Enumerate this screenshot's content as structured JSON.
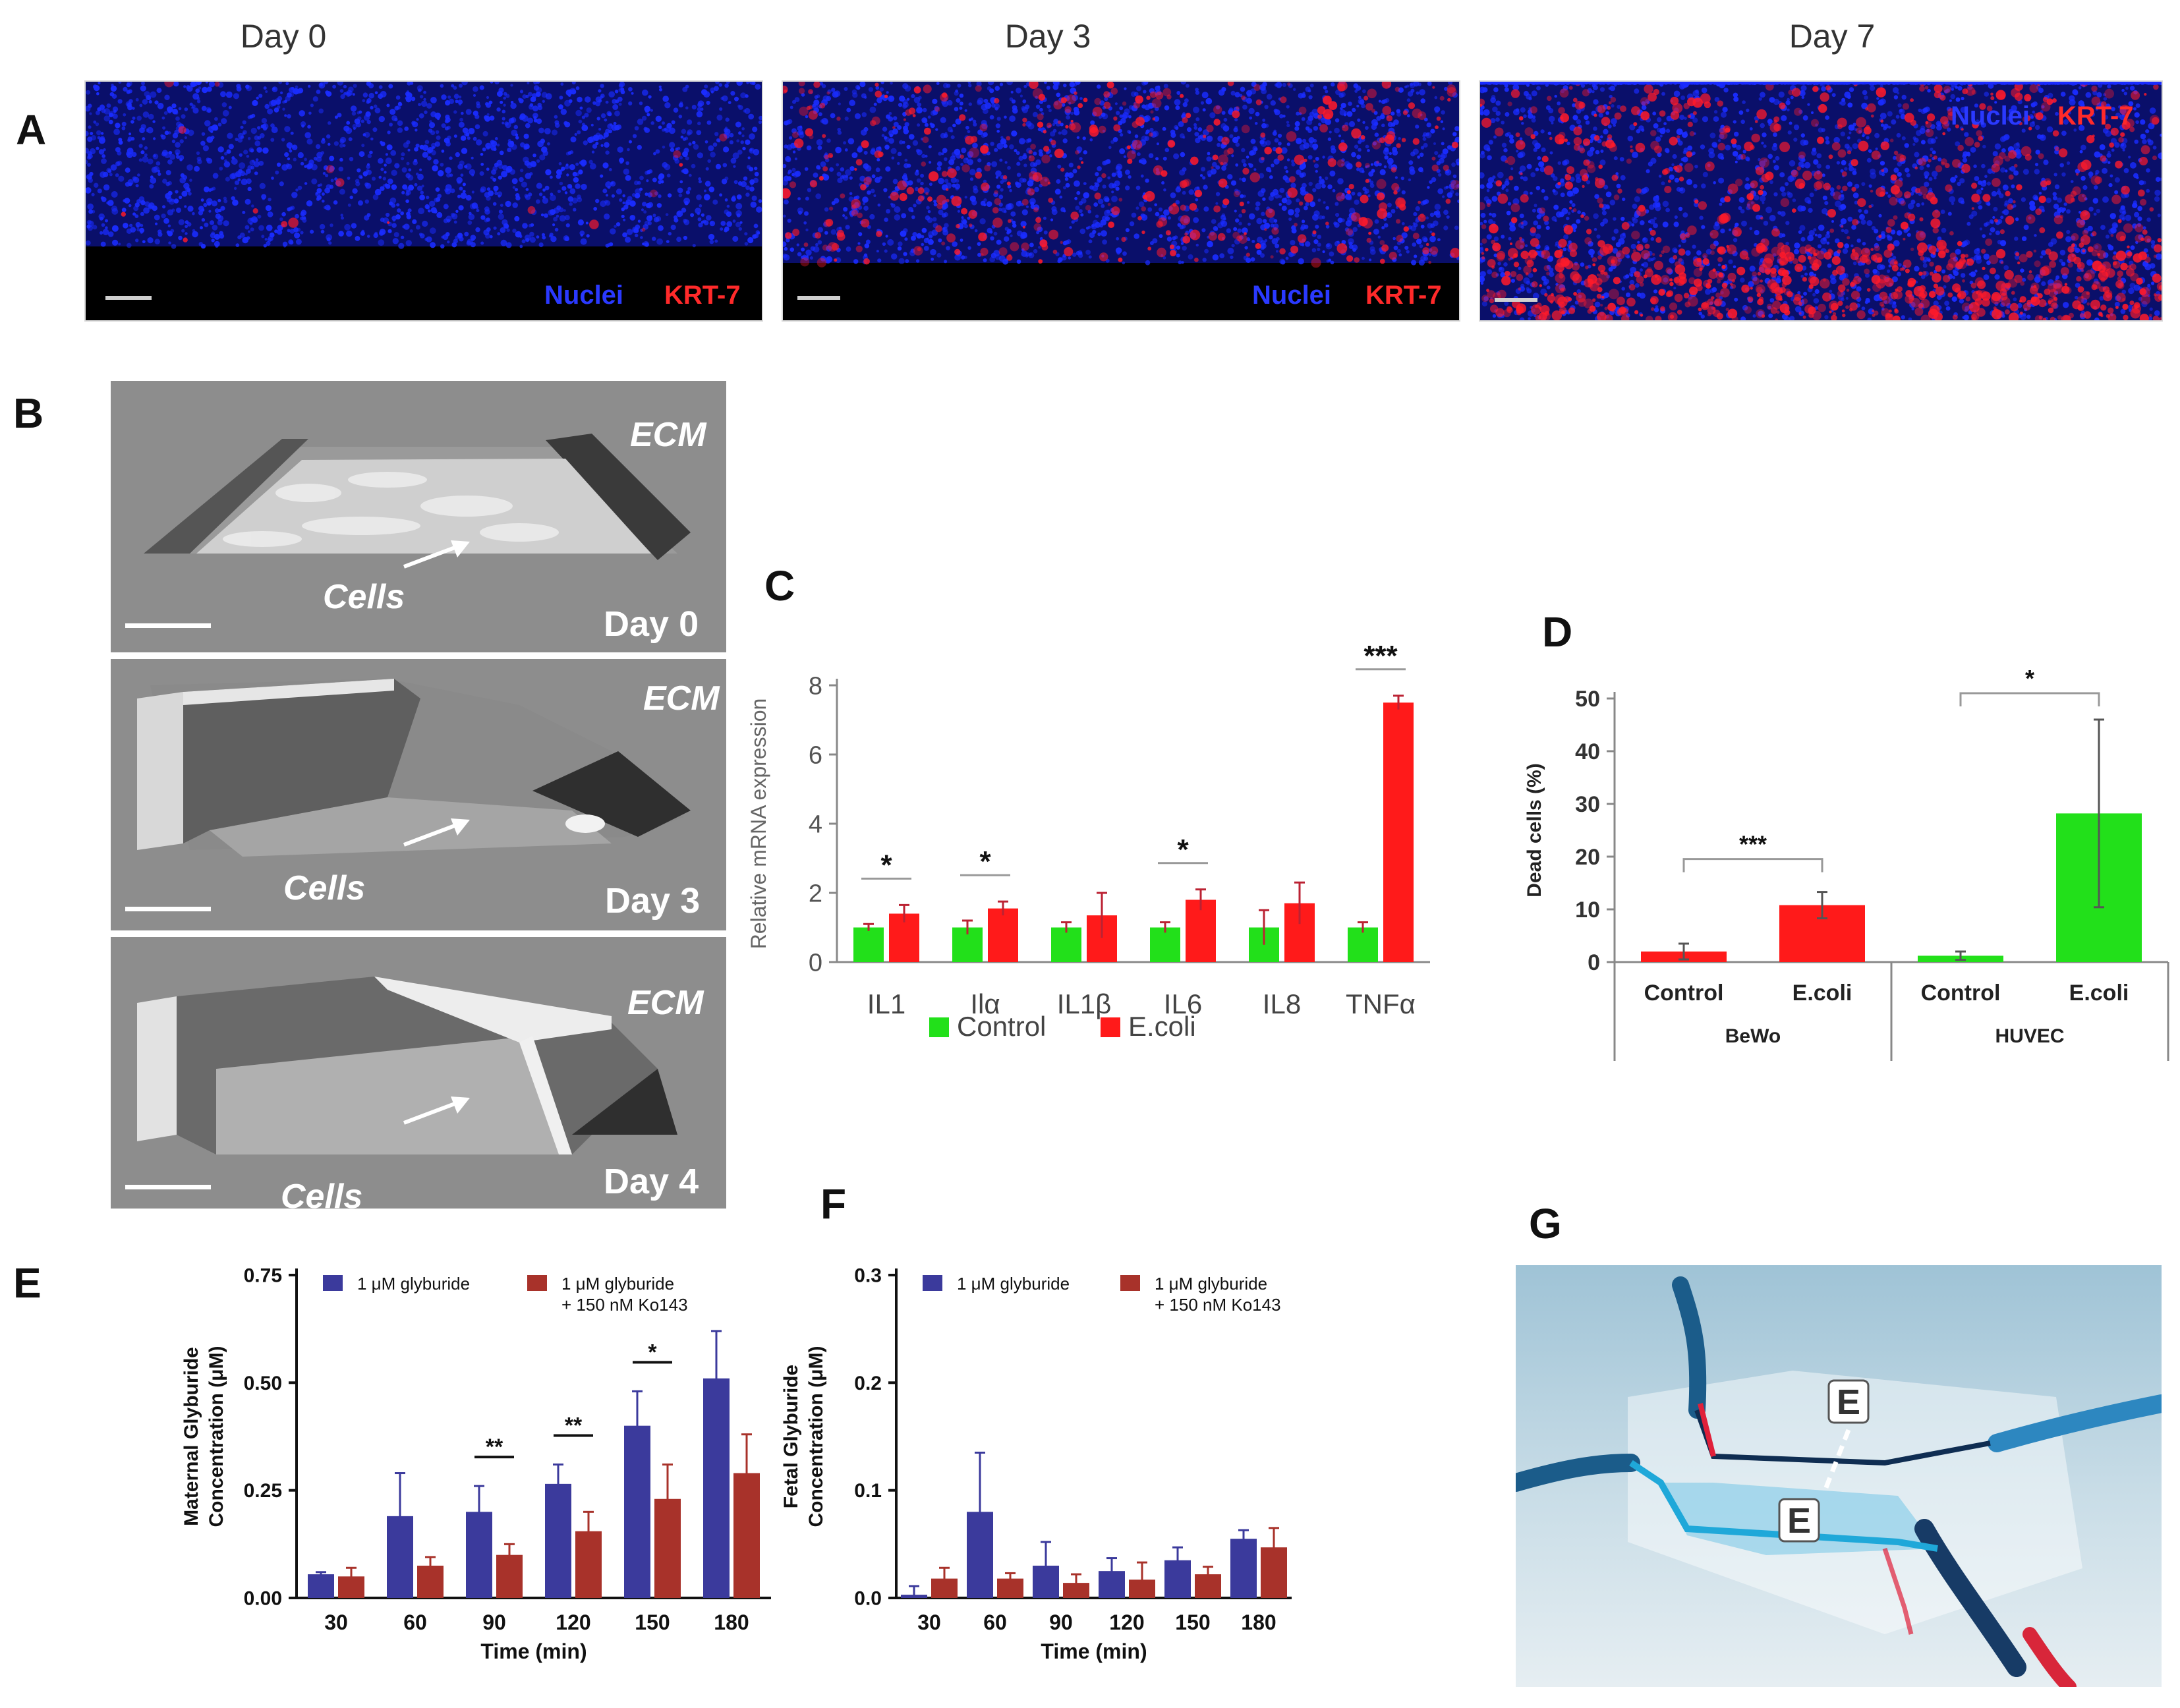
{
  "panel_letters": {
    "a": "A",
    "b": "B",
    "c": "C",
    "d": "D",
    "e": "E",
    "f": "F",
    "g": "G"
  },
  "panel_a": {
    "days": [
      "Day 0",
      "Day 3",
      "Day 7"
    ],
    "legend_nuclei": "Nuclei",
    "legend_krt": "KRT-7",
    "colors": {
      "nuclei": "#1a2cff",
      "krt7": "#ff1a2a"
    }
  },
  "panel_b": {
    "ecm_label": "ECM",
    "cells_label": "Cells",
    "days": [
      "Day 0",
      "Day 3",
      "Day 4"
    ]
  },
  "panel_g": {
    "letters": [
      "E",
      "E"
    ]
  },
  "chart_data": [
    {
      "panel": "C",
      "type": "bar",
      "ylabel": "Relative mRNA expression",
      "ylim": [
        0,
        8
      ],
      "yticks": [
        0,
        2,
        4,
        6,
        8
      ],
      "categories": [
        "IL1",
        "Ilα",
        "IL1β",
        "IL6",
        "IL8",
        "TNFα"
      ],
      "series": [
        {
          "name": "Control",
          "color": "#22e01a",
          "values": [
            1.0,
            1.0,
            1.0,
            1.0,
            1.0,
            1.0
          ],
          "errors": [
            0.1,
            0.2,
            0.15,
            0.15,
            0.5,
            0.15
          ]
        },
        {
          "name": "E.coli",
          "color": "#ff1a1a",
          "values": [
            1.4,
            1.55,
            1.35,
            1.8,
            1.7,
            7.5
          ],
          "errors": [
            0.25,
            0.2,
            0.65,
            0.3,
            0.6,
            0.2
          ]
        }
      ],
      "significance": [
        {
          "category": "IL1",
          "label": "*"
        },
        {
          "category": "Ilα",
          "label": "*"
        },
        {
          "category": "IL6",
          "label": "*"
        },
        {
          "category": "TNFα",
          "label": "***"
        }
      ],
      "legend": "bottom"
    },
    {
      "panel": "D",
      "type": "bar",
      "ylabel": "Dead cells (%)",
      "ylim": [
        0,
        50
      ],
      "yticks": [
        0,
        10,
        20,
        30,
        40,
        50
      ],
      "groups": [
        "BeWo",
        "HUVEC"
      ],
      "categories": [
        "Control",
        "E.coli",
        "Control",
        "E.coli"
      ],
      "values": [
        2.0,
        10.8,
        1.2,
        28.2
      ],
      "errors": [
        1.5,
        2.5,
        0.8,
        17.8
      ],
      "colors": [
        "#ff1a1a",
        "#ff1a1a",
        "#22e01a",
        "#22e01a"
      ],
      "significance": [
        {
          "group": "BeWo",
          "label": "***"
        },
        {
          "group": "HUVEC",
          "label": "*"
        }
      ]
    },
    {
      "panel": "E",
      "type": "bar",
      "ylabel_lines": [
        "Maternal Glyburide",
        "Concentration (μM)"
      ],
      "xlabel": "Time (min)",
      "ylim": [
        0,
        0.75
      ],
      "yticks": [
        "0.00",
        "0.25",
        "0.50",
        "0.75"
      ],
      "categories": [
        "30",
        "60",
        "90",
        "120",
        "150",
        "180"
      ],
      "series": [
        {
          "name": "1 μM glyburide",
          "color": "#3b3a9c",
          "values": [
            0.055,
            0.19,
            0.2,
            0.265,
            0.4,
            0.51
          ],
          "errors": [
            0.005,
            0.1,
            0.06,
            0.045,
            0.08,
            0.11
          ]
        },
        {
          "name_lines": [
            "1 μM glyburide",
            "+ 150 nM Ko143"
          ],
          "color": "#a8322a",
          "values": [
            0.05,
            0.075,
            0.1,
            0.155,
            0.23,
            0.29
          ],
          "errors": [
            0.02,
            0.02,
            0.025,
            0.045,
            0.08,
            0.09
          ]
        }
      ],
      "significance": [
        {
          "category": "90",
          "label": "**"
        },
        {
          "category": "120",
          "label": "**"
        },
        {
          "category": "150",
          "label": "*"
        }
      ]
    },
    {
      "panel": "F",
      "type": "bar",
      "ylabel_lines": [
        "Fetal Glyburide",
        "Concentration (μM)"
      ],
      "xlabel": "Time (min)",
      "ylim": [
        0,
        0.3
      ],
      "yticks": [
        "0.0",
        "0.1",
        "0.2",
        "0.3"
      ],
      "categories": [
        "30",
        "60",
        "90",
        "120",
        "150",
        "180"
      ],
      "series": [
        {
          "name": "1 μM glyburide",
          "color": "#3b3a9c",
          "values": [
            0.003,
            0.08,
            0.03,
            0.025,
            0.035,
            0.055
          ],
          "errors": [
            0.008,
            0.055,
            0.022,
            0.012,
            0.012,
            0.008
          ]
        },
        {
          "name_lines": [
            "1 μM glyburide",
            "+ 150 nM Ko143"
          ],
          "color": "#a8322a",
          "values": [
            0.018,
            0.018,
            0.014,
            0.017,
            0.022,
            0.047
          ],
          "errors": [
            0.01,
            0.005,
            0.008,
            0.016,
            0.007,
            0.018
          ]
        }
      ]
    }
  ]
}
